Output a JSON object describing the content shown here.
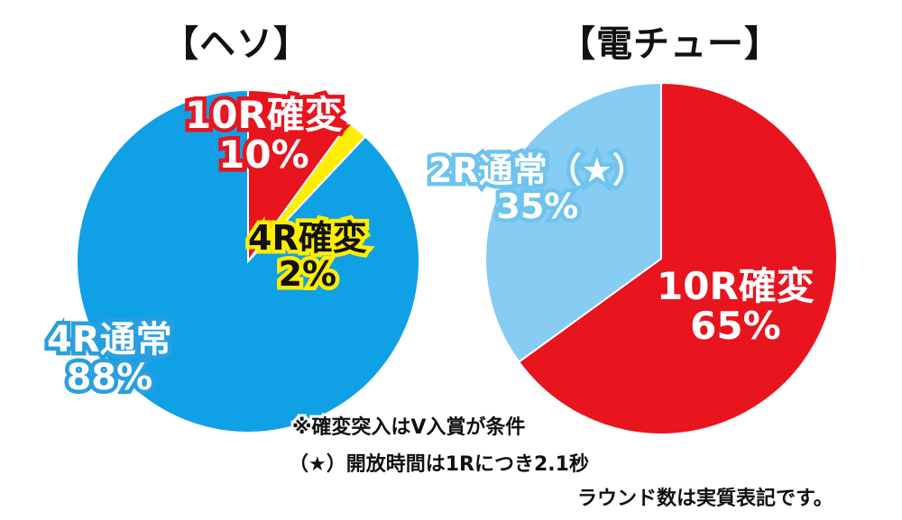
{
  "chart_data": [
    {
      "type": "pie",
      "title": "【ヘソ】",
      "slices": [
        {
          "label": "10R確変",
          "value": 10,
          "value_label": "10%",
          "color": "#e8141e"
        },
        {
          "label": "4R確変",
          "value": 2,
          "value_label": "2%",
          "color": "#ffee00"
        },
        {
          "label": "4R通常",
          "value": 88,
          "value_label": "88%",
          "color": "#10a0e6"
        }
      ]
    },
    {
      "type": "pie",
      "title": "【電チュー】",
      "slices": [
        {
          "label": "10R確変",
          "value": 65,
          "value_label": "65%",
          "color": "#e8141e"
        },
        {
          "label": "2R通常（★）",
          "value": 35,
          "value_label": "35%",
          "color": "#87ccf2"
        }
      ]
    }
  ],
  "notes": {
    "line1": "※確変突入はV入賞が条件",
    "line2": "（★）開放時間は1Rにつき2.1秒",
    "line3": "ラウンド数は実質表記です。"
  }
}
